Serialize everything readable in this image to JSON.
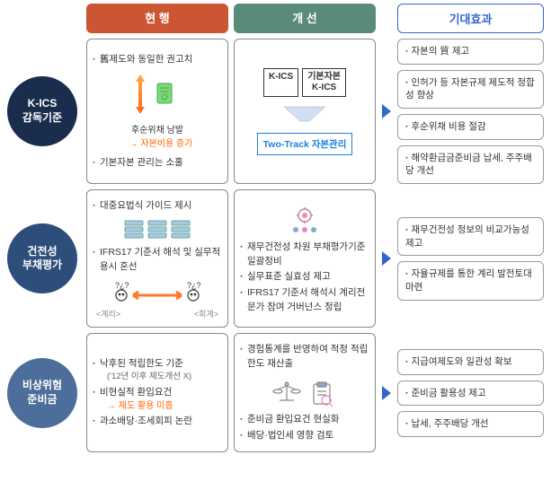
{
  "colors": {
    "header1_bg": "#cc5533",
    "header2_bg": "#5a8a7a",
    "header3_bg": "#3366cc",
    "header3_text": "#3366cc",
    "row1_bg": "#1a2d4d",
    "row2_bg": "#2d4d7a",
    "row3_bg": "#4d6d9a",
    "arrow_orange": "#ff6600",
    "tt_blue": "#2080e0",
    "triangle_fill": "#3366cc"
  },
  "headers": {
    "col1": "현 행",
    "col2": "개 선",
    "col3": "기대효과"
  },
  "rows": [
    {
      "label": "K-ICS\n감독기준",
      "current": {
        "items": [
          {
            "text": "舊제도와 동일한 권고치"
          },
          {
            "text": "기본자본 관리는 소홀"
          }
        ],
        "icon_caption": "후순위채 남발",
        "icon_arrow": "→ 자본비용 증가"
      },
      "improve": {
        "box1": "K-ICS",
        "box2": "기본자본\nK-ICS",
        "tt": "Two-Track 자본관리"
      },
      "effects": [
        "자본의 質 제고",
        "인허가 등 자본규제 제도적 정합성 향상",
        "후순위채 비용 절감",
        "해약환급금준비금 납세, 주주배당 개선"
      ]
    },
    {
      "label": "건전성\n부채평가",
      "current": {
        "items": [
          {
            "text": "대중요법식 가이드 제시"
          },
          {
            "text": "IFRS17 기준서 해석 및 실무적용시 혼선"
          }
        ],
        "foot_left": "<계리>",
        "foot_right": "<회계>"
      },
      "improve": {
        "items": [
          "재무건전성 차원 부채평가기준 일괄정비",
          "실무표준 실효성 제고",
          "IFRS17 기준서 해석시 계리전문가 참여 거버넌스 정립"
        ]
      },
      "effects": [
        "재무건전성 정보의 비교가능성 제고",
        "자율규제를 통한 계리 발전토대 마련"
      ]
    },
    {
      "label": "비상위험\n준비금",
      "current": {
        "items": [
          {
            "text": "낙후된 적립한도 기준",
            "sub": "('12년 이후 제도개선 X)"
          },
          {
            "text": "비현실적 환입요건",
            "arrow": "→ 제도 활용 미흡"
          },
          {
            "text": "과소배당·조세회피 논란"
          }
        ]
      },
      "improve": {
        "items": [
          "경험통계를 반영하여 적정 적립한도 재산출",
          "준비금 환입요건 현실화",
          "배당·법인세 영향 검토"
        ]
      },
      "effects": [
        "지급여제도와 일관성 확보",
        "준비금 활용성 제고",
        "납세, 주주배당 개선"
      ]
    }
  ]
}
